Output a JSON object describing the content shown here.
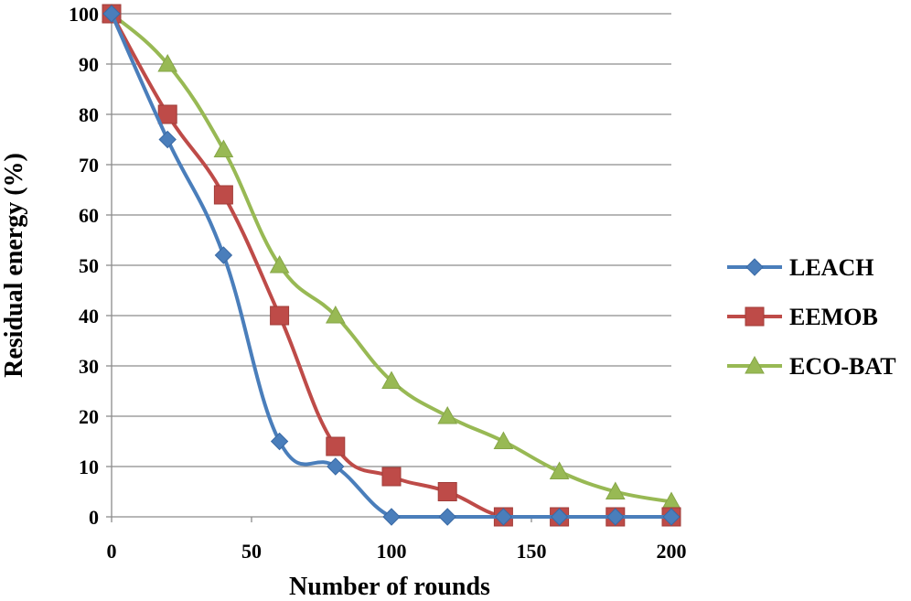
{
  "chart_data": {
    "type": "line",
    "title": "",
    "xlabel": "Number of rounds",
    "ylabel": "Residual energy (%)",
    "x": [
      0,
      20,
      40,
      60,
      80,
      100,
      120,
      140,
      160,
      180,
      200
    ],
    "xlim": [
      0,
      200
    ],
    "ylim": [
      0,
      100
    ],
    "xticks": [
      0,
      50,
      100,
      150,
      200
    ],
    "yticks": [
      0,
      10,
      20,
      30,
      40,
      50,
      60,
      70,
      80,
      90,
      100
    ],
    "xtick_labels": [
      "0",
      "50",
      "100",
      "150",
      "200"
    ],
    "ytick_labels": [
      "0",
      "10",
      "20",
      "30",
      "40",
      "50",
      "60",
      "70",
      "80",
      "90",
      "100"
    ],
    "grid": "horizontal",
    "legend_position": "right",
    "smoothed": true,
    "series": [
      {
        "name": "LEACH",
        "marker": "diamond",
        "color": "#4a7ebb",
        "x": [
          0,
          20,
          40,
          60,
          80,
          100,
          120,
          140,
          160,
          180,
          200
        ],
        "values": [
          100,
          75,
          52,
          15,
          10,
          0,
          0,
          0,
          0,
          0,
          0
        ]
      },
      {
        "name": "EEMOB",
        "marker": "square",
        "color": "#be4b48",
        "x": [
          0,
          20,
          40,
          60,
          80,
          100,
          120,
          140,
          160,
          180,
          200
        ],
        "values": [
          100,
          80,
          64,
          40,
          14,
          8,
          5,
          0,
          0,
          0,
          0
        ]
      },
      {
        "name": "ECO-BAT",
        "marker": "triangle",
        "color": "#98b954",
        "x": [
          0,
          20,
          40,
          60,
          80,
          100,
          120,
          140,
          160,
          180,
          200
        ],
        "values": [
          100,
          90,
          73,
          50,
          40,
          27,
          20,
          15,
          9,
          5,
          3
        ]
      }
    ]
  }
}
